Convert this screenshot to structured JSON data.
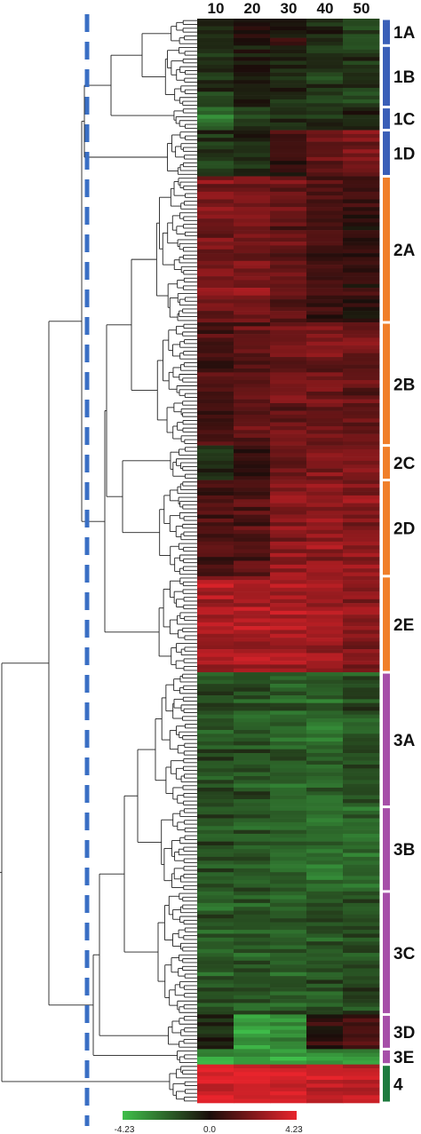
{
  "chart_data": {
    "type": "heatmap",
    "title": "",
    "columns": [
      "10",
      "20",
      "30",
      "40",
      "50"
    ],
    "color_scale": {
      "min": -4.23,
      "mid": 0.0,
      "max": 4.23,
      "min_label": "-4.23",
      "mid_label": "0.0",
      "max_label": "4.23",
      "low_color": "#3fbf4a",
      "mid_color": "#1a0d0a",
      "high_color": "#e8242c"
    },
    "clusters": [
      {
        "label": "1A",
        "group": 1,
        "rows": 7,
        "profile": [
          -0.5,
          0.3,
          0.2,
          -0.6,
          -1.4
        ]
      },
      {
        "label": "1B",
        "group": 1,
        "rows": 16,
        "profile": [
          -0.8,
          -0.2,
          -0.6,
          -0.9,
          -1.0
        ]
      },
      {
        "label": "1C",
        "group": 1,
        "rows": 6,
        "profile": [
          -2.3,
          -1.0,
          -0.7,
          -0.5,
          -0.6
        ]
      },
      {
        "label": "1D",
        "group": 1,
        "rows": 12,
        "profile": [
          -0.9,
          -0.6,
          0.6,
          1.4,
          2.0
        ]
      },
      {
        "label": "2A",
        "group": 2,
        "rows": 38,
        "profile": [
          2.0,
          2.1,
          1.6,
          1.0,
          0.6
        ]
      },
      {
        "label": "2B",
        "group": 2,
        "rows": 32,
        "profile": [
          0.9,
          1.4,
          1.7,
          1.8,
          1.6
        ]
      },
      {
        "label": "2C",
        "group": 2,
        "rows": 9,
        "profile": [
          -0.7,
          0.2,
          1.6,
          2.0,
          2.2
        ]
      },
      {
        "label": "2D",
        "group": 2,
        "rows": 25,
        "profile": [
          1.0,
          1.2,
          2.3,
          2.5,
          2.3
        ]
      },
      {
        "label": "2E",
        "group": 2,
        "rows": 25,
        "profile": [
          3.0,
          3.0,
          3.0,
          2.6,
          2.3
        ]
      },
      {
        "label": "3A",
        "group": 3,
        "rows": 35,
        "profile": [
          -1.5,
          -1.6,
          -1.9,
          -2.1,
          -1.5
        ]
      },
      {
        "label": "3B",
        "group": 3,
        "rows": 22,
        "profile": [
          -1.6,
          -1.8,
          -2.0,
          -2.3,
          -2.2
        ]
      },
      {
        "label": "3C",
        "group": 3,
        "rows": 32,
        "profile": [
          -1.8,
          -1.8,
          -1.8,
          -1.6,
          -1.4
        ]
      },
      {
        "label": "3D",
        "group": 3,
        "rows": 9,
        "profile": [
          -0.4,
          -3.5,
          -3.0,
          0.4,
          0.9
        ]
      },
      {
        "label": "3E",
        "group": 3,
        "rows": 4,
        "profile": [
          -3.2,
          -3.4,
          -3.4,
          -3.0,
          -3.0
        ]
      },
      {
        "label": "4",
        "group": 4,
        "rows": 10,
        "profile": [
          4.0,
          4.0,
          3.9,
          3.7,
          3.5
        ]
      }
    ],
    "group_colors": {
      "1": "#3a5fb8",
      "2": "#f07f2a",
      "3": "#a64fa8",
      "4": "#1e7a3e"
    },
    "cutoff_line_color": "#3a6fc4",
    "grid": false,
    "legend_position": "bottom"
  }
}
